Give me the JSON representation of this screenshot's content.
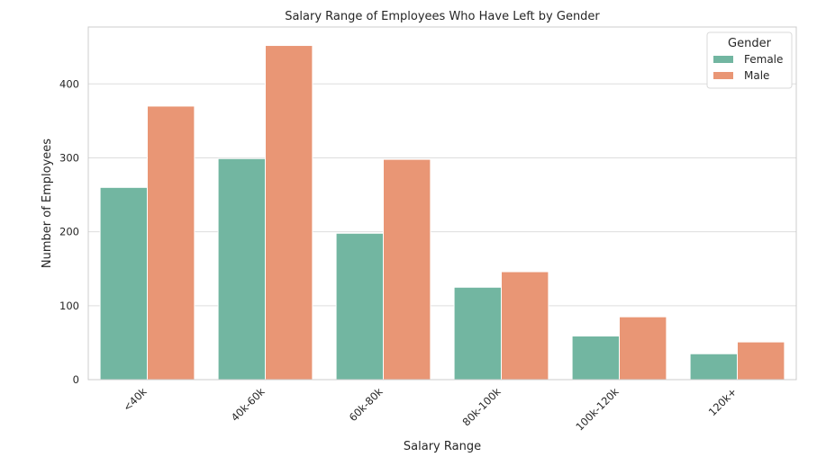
{
  "chart_data": {
    "type": "bar",
    "title": "Salary Range of Employees Who Have Left by Gender",
    "xlabel": "Salary Range",
    "ylabel": "Number of Employees",
    "categories": [
      "<40k",
      "40k-60k",
      "60k-80k",
      "80k-100k",
      "100k-120k",
      "120k+"
    ],
    "series": [
      {
        "name": "Female",
        "color": "#72b6a1",
        "values": [
          260,
          299,
          198,
          125,
          59,
          35
        ]
      },
      {
        "name": "Male",
        "color": "#e99675",
        "values": [
          370,
          452,
          298,
          146,
          85,
          51
        ]
      }
    ],
    "ylim": [
      0,
      477
    ],
    "yticks": [
      0,
      100,
      200,
      300,
      400
    ],
    "grid": true,
    "legend": {
      "title": "Gender",
      "position": "top-right"
    }
  }
}
